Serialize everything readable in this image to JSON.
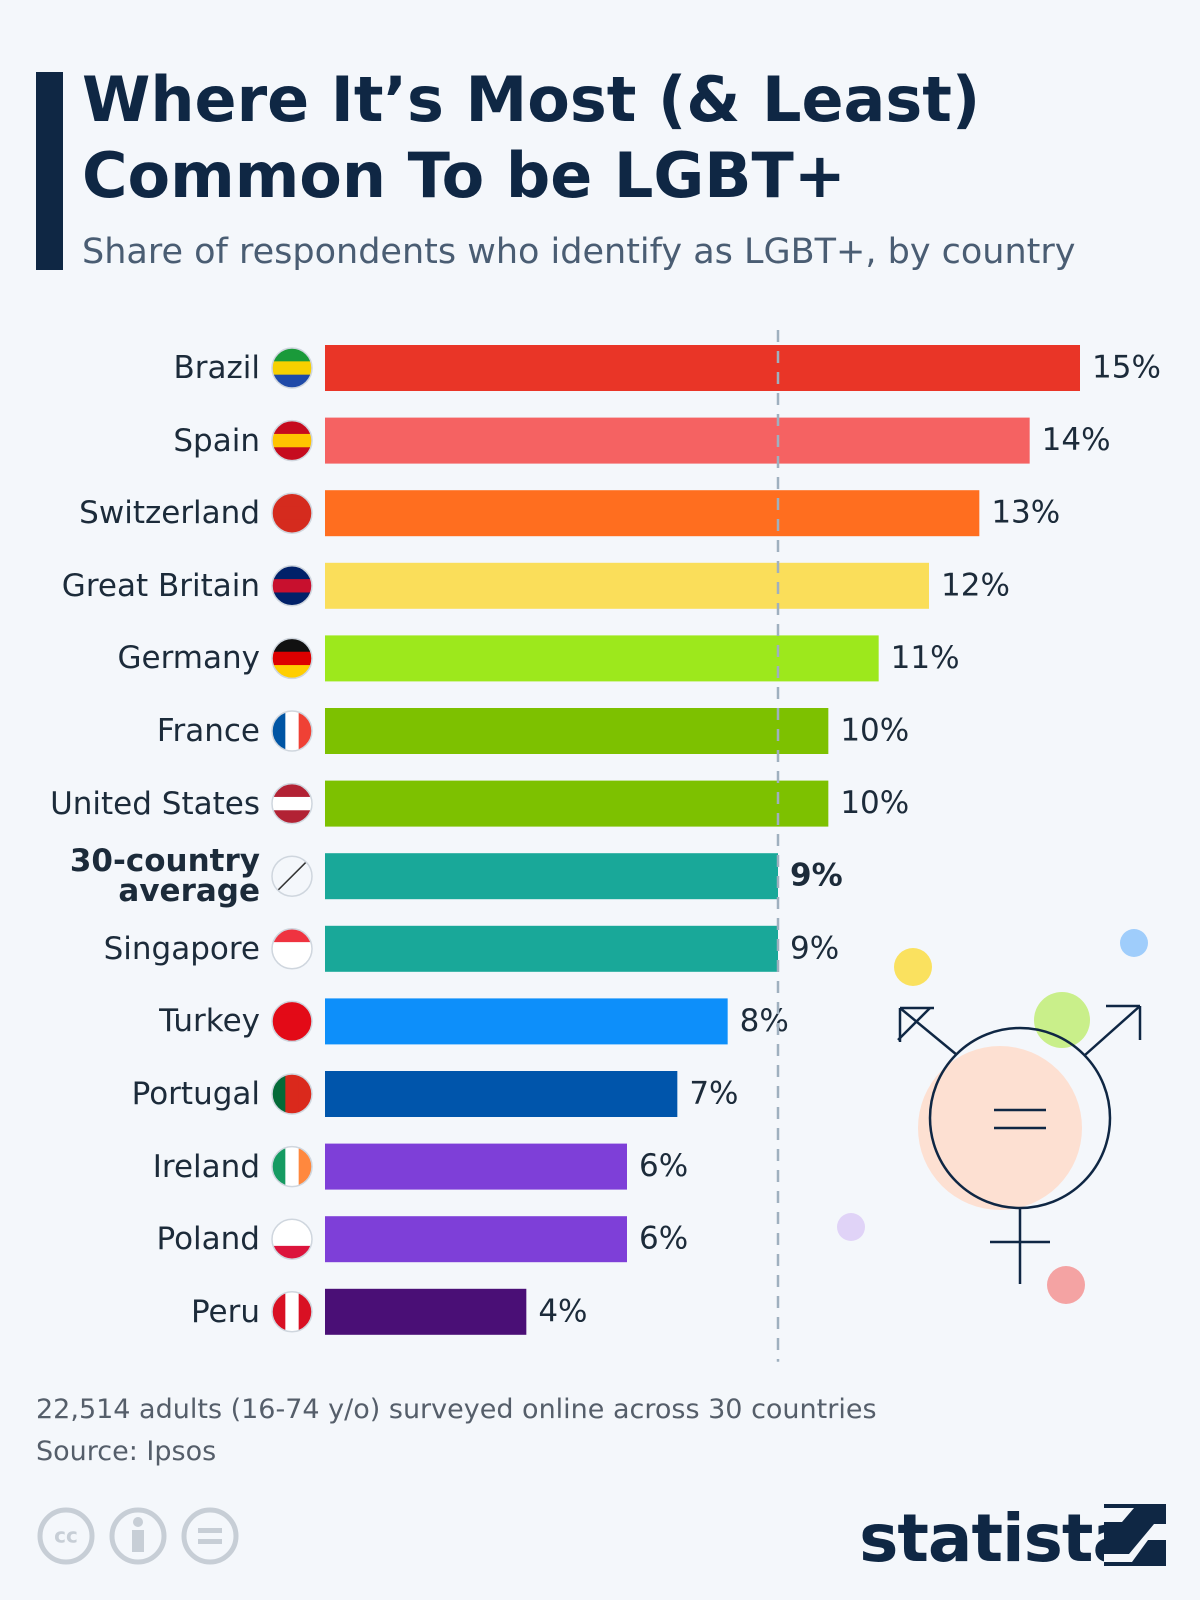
{
  "chart_data": {
    "type": "bar",
    "orientation": "horizontal",
    "title": "Where It’s Most (& Least) Common To be LGBT+",
    "subtitle": "Share of respondents who identify as LGBT+, by country",
    "categories": [
      "Brazil",
      "Spain",
      "Switzerland",
      "Great Britain",
      "Germany",
      "France",
      "United States",
      "30-country average",
      "Singapore",
      "Turkey",
      "Portugal",
      "Ireland",
      "Poland",
      "Peru"
    ],
    "values": [
      15,
      14,
      13,
      12,
      11,
      10,
      10,
      9,
      9,
      8,
      7,
      6,
      6,
      4
    ],
    "value_labels": [
      "15%",
      "14%",
      "13%",
      "12%",
      "11%",
      "10%",
      "10%",
      "9%",
      "9%",
      "8%",
      "7%",
      "6%",
      "6%",
      "4%"
    ],
    "colors": [
      "#e93527",
      "#f56262",
      "#ff6e1f",
      "#fade5a",
      "#9de81c",
      "#7dc100",
      "#7dc100",
      "#19a899",
      "#19a899",
      "#0d8ffa",
      "#0055ab",
      "#7e3fd8",
      "#7e3fd8",
      "#4a0f76"
    ],
    "highlight_index": 7,
    "xlim": [
      0,
      15
    ],
    "note": "22,514 adults (16-74 y/o) surveyed online across 30 countries",
    "source": "Source: Ipsos",
    "brand": "statista"
  }
}
